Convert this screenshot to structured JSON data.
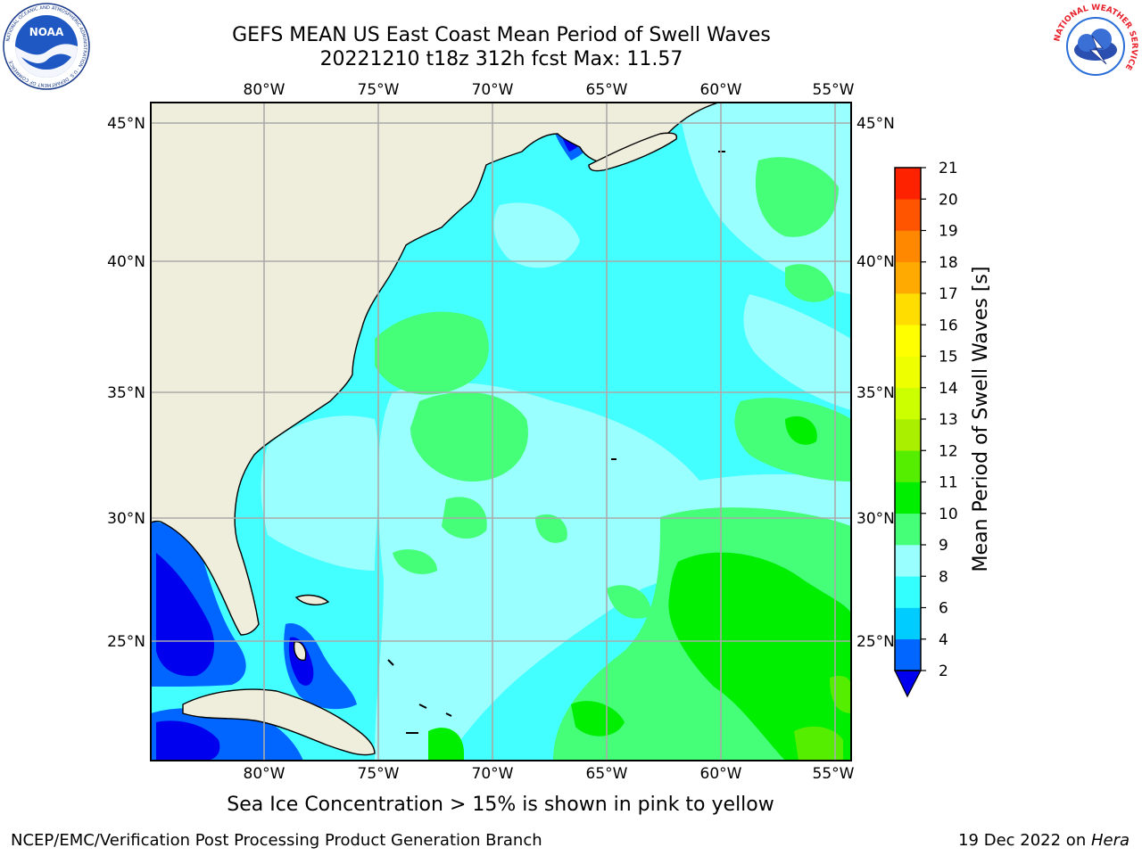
{
  "title_line1": "GEFS MEAN US East Coast Mean Period of Swell Waves",
  "title_line2": "20221210 t18z 312h fcst   Max: 11.57",
  "lon_labels": [
    "80°W",
    "75°W",
    "70°W",
    "65°W",
    "60°W",
    "55°W"
  ],
  "lat_labels": [
    "45°N",
    "40°N",
    "35°N",
    "30°N",
    "25°N"
  ],
  "colorbar": {
    "label": "Mean Period of Swell Waves [s]",
    "ticks": [
      "2",
      "4",
      "6",
      "8",
      "9",
      "10",
      "11",
      "12",
      "13",
      "14",
      "15",
      "16",
      "17",
      "18",
      "19",
      "20",
      "21"
    ],
    "colors": [
      "#0066ff",
      "#00ccff",
      "#33ffff",
      "#99ffff",
      "#44ff77",
      "#00ee00",
      "#55ee00",
      "#aaee00",
      "#ccff00",
      "#eeff00",
      "#ffff00",
      "#ffdd00",
      "#ffaa00",
      "#ff8800",
      "#ff5500",
      "#ff2200"
    ],
    "extend_color": "#0000ee"
  },
  "caption": "Sea Ice Concentration > 15% is shown in pink to yellow",
  "footer_left": "NCEP/EMC/Verification Post Processing Product Generation Branch",
  "footer_right_date": "19 Dec 2022 on ",
  "footer_right_host": "Hera",
  "logos": {
    "noaa_text": "NOAA",
    "noaa_ring": "NATIONAL OCEANIC AND ATMOSPHERIC ADMINISTRATION · U.S. DEPARTMENT OF COMMERCE",
    "nws_ring": "NATIONAL WEATHER SERVICE"
  },
  "map_colors": {
    "land": "#efeedd",
    "ocean_base": "#44ffff",
    "light_cyan": "#99ffff",
    "green": "#44ff77",
    "bright_green": "#00ee00",
    "blue": "#0066ff",
    "deep_blue": "#0000ee",
    "grid": "#aaaaaa"
  }
}
